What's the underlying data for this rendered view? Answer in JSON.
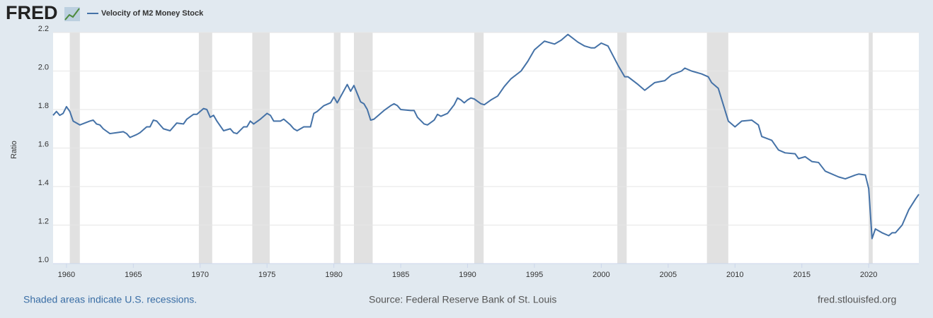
{
  "chart_data": {
    "type": "line",
    "logo": "FRED",
    "y_label": "Ratio",
    "footer_left": "Shaded areas indicate U.S. recessions.",
    "source": "Source: Federal Reserve Bank of St. Louis",
    "site": "fred.stlouisfed.org",
    "xlim": [
      1959.0,
      2023.75
    ],
    "xticks": [
      1960,
      1965,
      1970,
      1975,
      1980,
      1985,
      1990,
      1995,
      2000,
      2005,
      2010,
      2015,
      2020
    ],
    "ylim": [
      1.0,
      2.2
    ],
    "yticks": [
      {
        "value": 1.0,
        "label": "1.0"
      },
      1.2,
      1.4,
      1.6,
      1.8,
      {
        "value": 2.0,
        "label": "2.0"
      },
      2.2
    ],
    "grid": true,
    "recessions": [
      [
        1960.25,
        1961.0
      ],
      [
        1969.9,
        1970.9
      ],
      [
        1973.9,
        1975.2
      ],
      [
        1980.0,
        1980.5
      ],
      [
        1981.5,
        1982.9
      ],
      [
        1990.5,
        1991.2
      ],
      [
        2001.2,
        2001.9
      ],
      [
        2007.9,
        2009.5
      ],
      [
        2020.0,
        2020.3
      ]
    ],
    "x": [
      1959.0,
      1959.25,
      1959.5,
      1959.75,
      1960.0,
      1960.25,
      1960.5,
      1961.0,
      1961.75,
      1962.0,
      1962.25,
      1962.5,
      1962.75,
      1963.25,
      1963.75,
      1964.25,
      1964.5,
      1964.75,
      1965.25,
      1965.5,
      1966.0,
      1966.25,
      1966.5,
      1966.75,
      1967.25,
      1967.75,
      1968.25,
      1968.75,
      1969.0,
      1969.5,
      1969.75,
      1970.25,
      1970.5,
      1970.75,
      1971.0,
      1971.25,
      1971.75,
      1972.25,
      1972.5,
      1972.75,
      1973.25,
      1973.5,
      1973.75,
      1974.0,
      1974.5,
      1975.0,
      1975.25,
      1975.5,
      1976.0,
      1976.25,
      1976.75,
      1977.0,
      1977.25,
      1977.75,
      1978.25,
      1978.5,
      1978.75,
      1979.25,
      1979.75,
      1980.0,
      1980.25,
      1981.0,
      1981.25,
      1981.5,
      1982.0,
      1982.25,
      1982.5,
      1982.75,
      1983.0,
      1983.75,
      1984.25,
      1984.5,
      1984.75,
      1985.0,
      1985.75,
      1986.0,
      1986.25,
      1986.75,
      1987.0,
      1987.5,
      1987.75,
      1988.0,
      1988.5,
      1989.0,
      1989.25,
      1989.5,
      1989.75,
      1990.0,
      1990.25,
      1990.5,
      1991.0,
      1991.25,
      1991.75,
      1992.25,
      1992.75,
      1993.25,
      1994.0,
      1994.5,
      1995.0,
      1995.75,
      1996.5,
      1997.0,
      1997.5,
      1998.25,
      1998.75,
      1999.25,
      1999.5,
      2000.0,
      2000.5,
      2001.25,
      2001.75,
      2002.0,
      2002.75,
      2003.25,
      2004.0,
      2004.75,
      2005.25,
      2006.0,
      2006.25,
      2006.75,
      2007.5,
      2008.0,
      2008.25,
      2008.75,
      2009.5,
      2010.0,
      2010.5,
      2011.25,
      2011.75,
      2012.0,
      2012.75,
      2013.25,
      2013.75,
      2014.5,
      2014.75,
      2015.25,
      2015.75,
      2016.25,
      2016.75,
      2017.75,
      2018.25,
      2019.0,
      2019.25,
      2019.75,
      2020.0,
      2020.25,
      2020.5,
      2021.0,
      2021.5,
      2021.75,
      2022.0,
      2022.5,
      2023.0,
      2023.5,
      2023.75
    ],
    "series": [
      {
        "name": "Velocity of M2 Money Stock",
        "color": "#4572a7",
        "values": [
          1.77,
          1.79,
          1.77,
          1.78,
          1.815,
          1.79,
          1.74,
          1.72,
          1.74,
          1.745,
          1.725,
          1.72,
          1.7,
          1.675,
          1.68,
          1.685,
          1.675,
          1.655,
          1.67,
          1.68,
          1.71,
          1.71,
          1.745,
          1.74,
          1.7,
          1.69,
          1.73,
          1.725,
          1.75,
          1.775,
          1.775,
          1.805,
          1.8,
          1.76,
          1.77,
          1.74,
          1.69,
          1.7,
          1.68,
          1.675,
          1.71,
          1.71,
          1.74,
          1.725,
          1.75,
          1.78,
          1.77,
          1.74,
          1.74,
          1.75,
          1.72,
          1.7,
          1.69,
          1.71,
          1.71,
          1.78,
          1.79,
          1.82,
          1.835,
          1.865,
          1.835,
          1.93,
          1.895,
          1.925,
          1.84,
          1.83,
          1.8,
          1.745,
          1.75,
          1.795,
          1.82,
          1.83,
          1.82,
          1.8,
          1.795,
          1.795,
          1.76,
          1.725,
          1.72,
          1.745,
          1.775,
          1.765,
          1.78,
          1.825,
          1.86,
          1.85,
          1.835,
          1.85,
          1.86,
          1.855,
          1.83,
          1.825,
          1.85,
          1.87,
          1.92,
          1.96,
          2.0,
          2.05,
          2.11,
          2.155,
          2.14,
          2.16,
          2.19,
          2.15,
          2.13,
          2.12,
          2.12,
          2.145,
          2.13,
          2.03,
          1.97,
          1.97,
          1.93,
          1.9,
          1.94,
          1.95,
          1.98,
          2.0,
          2.015,
          2.0,
          1.985,
          1.97,
          1.94,
          1.91,
          1.74,
          1.71,
          1.74,
          1.745,
          1.72,
          1.66,
          1.64,
          1.59,
          1.575,
          1.57,
          1.545,
          1.555,
          1.53,
          1.525,
          1.48,
          1.45,
          1.44,
          1.46,
          1.465,
          1.46,
          1.39,
          1.13,
          1.18,
          1.16,
          1.145,
          1.16,
          1.16,
          1.2,
          1.28,
          1.335,
          1.36
        ]
      }
    ]
  }
}
